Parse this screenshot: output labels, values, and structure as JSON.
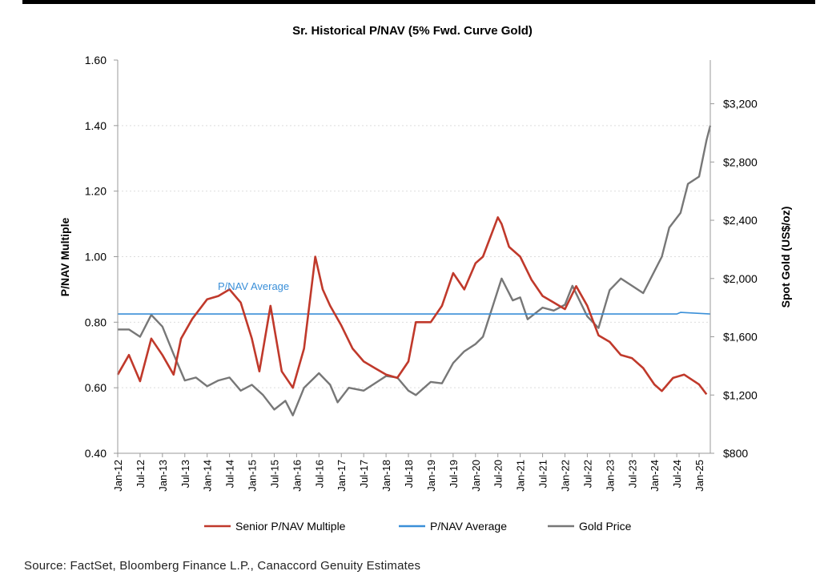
{
  "source_text": "Source:  FactSet, Bloomberg Finance L.P., Canaccord Genuity Estimates",
  "chart_data": {
    "type": "line",
    "title": "Sr. Historical P/NAV (5% Fwd. Curve Gold)",
    "ylabel": "P/NAV Multiple",
    "y2label": "Spot Gold (US$/oz)",
    "ylim": [
      0.4,
      1.6
    ],
    "y2lim": [
      800,
      3500
    ],
    "yticks": [
      "0.40",
      "0.60",
      "0.80",
      "1.00",
      "1.20",
      "1.40",
      "1.60"
    ],
    "y2ticks": [
      "$800",
      "$1,200",
      "$1,600",
      "$2,000",
      "$2,400",
      "$2,800",
      "$3,200"
    ],
    "x_tick_labels": [
      "Jan-12",
      "Jul-12",
      "Jan-13",
      "Jul-13",
      "Jan-14",
      "Jul-14",
      "Jan-15",
      "Jul-15",
      "Jan-16",
      "Jul-16",
      "Jan-17",
      "Jul-17",
      "Jan-18",
      "Jul-18",
      "Jan-19",
      "Jul-19",
      "Jan-20",
      "Jul-20",
      "Jan-21",
      "Jul-21",
      "Jan-22",
      "Jul-22",
      "Jan-23",
      "Jul-23",
      "Jan-24",
      "Jul-24",
      "Jan-25"
    ],
    "xlim": [
      "Jan-12",
      "Apr-25"
    ],
    "grid": "horizontal dashed",
    "legend_position": "bottom",
    "annotation": "P/NAV Average",
    "series": [
      {
        "name": "Senior P/NAV Multiple",
        "axis": "left",
        "color": "#c0392b",
        "x": [
          "Jan-12",
          "Apr-12",
          "Jul-12",
          "Oct-12",
          "Jan-13",
          "Apr-13",
          "Jun-13",
          "Sep-13",
          "Jan-14",
          "Apr-14",
          "Jul-14",
          "Oct-14",
          "Jan-15",
          "Mar-15",
          "Jun-15",
          "Sep-15",
          "Dec-15",
          "Mar-16",
          "Jun-16",
          "Aug-16",
          "Oct-16",
          "Jan-17",
          "Apr-17",
          "Jul-17",
          "Oct-17",
          "Jan-18",
          "Apr-18",
          "Jul-18",
          "Sep-18",
          "Jan-19",
          "Apr-19",
          "Jul-19",
          "Oct-19",
          "Jan-20",
          "Mar-20",
          "Jul-20",
          "Aug-20",
          "Oct-20",
          "Jan-21",
          "Apr-21",
          "Jul-21",
          "Oct-21",
          "Jan-22",
          "Apr-22",
          "Jul-22",
          "Oct-22",
          "Jan-23",
          "Apr-23",
          "Jul-23",
          "Oct-23",
          "Jan-24",
          "Mar-24",
          "Jun-24",
          "Sep-24",
          "Jan-25",
          "Mar-25"
        ],
        "values": [
          0.64,
          0.7,
          0.62,
          0.75,
          0.7,
          0.64,
          0.75,
          0.81,
          0.87,
          0.88,
          0.9,
          0.86,
          0.75,
          0.65,
          0.85,
          0.65,
          0.6,
          0.72,
          1.0,
          0.9,
          0.85,
          0.79,
          0.72,
          0.68,
          0.66,
          0.64,
          0.63,
          0.68,
          0.8,
          0.8,
          0.85,
          0.95,
          0.9,
          0.98,
          1.0,
          1.12,
          1.1,
          1.03,
          1.0,
          0.93,
          0.88,
          0.86,
          0.84,
          0.91,
          0.85,
          0.76,
          0.74,
          0.7,
          0.69,
          0.66,
          0.61,
          0.59,
          0.63,
          0.64,
          0.61,
          0.58
        ]
      },
      {
        "name": "P/NAV Average",
        "axis": "left",
        "color": "#3a8fd8",
        "x": [
          "Jan-12",
          "Jul-24",
          "Aug-24",
          "Apr-25"
        ],
        "values": [
          0.825,
          0.825,
          0.83,
          0.825
        ]
      },
      {
        "name": "Gold Price",
        "axis": "right",
        "color": "#777777",
        "x": [
          "Jan-12",
          "Apr-12",
          "Jul-12",
          "Oct-12",
          "Jan-13",
          "Apr-13",
          "Jul-13",
          "Oct-13",
          "Jan-14",
          "Apr-14",
          "Jul-14",
          "Oct-14",
          "Jan-15",
          "Apr-15",
          "Jul-15",
          "Oct-15",
          "Dec-15",
          "Mar-16",
          "Jul-16",
          "Oct-16",
          "Dec-16",
          "Mar-17",
          "Jul-17",
          "Oct-17",
          "Jan-18",
          "Apr-18",
          "Jul-18",
          "Sep-18",
          "Jan-19",
          "Apr-19",
          "Jul-19",
          "Oct-19",
          "Jan-20",
          "Mar-20",
          "Aug-20",
          "Nov-20",
          "Jan-21",
          "Mar-21",
          "Jul-21",
          "Oct-21",
          "Jan-22",
          "Mar-22",
          "Jul-22",
          "Oct-22",
          "Jan-23",
          "Apr-23",
          "Jul-23",
          "Oct-23",
          "Jan-24",
          "Mar-24",
          "May-24",
          "Aug-24",
          "Oct-24",
          "Jan-25",
          "Mar-25",
          "Apr-25"
        ],
        "values": [
          1650,
          1650,
          1600,
          1750,
          1670,
          1480,
          1300,
          1320,
          1260,
          1300,
          1320,
          1230,
          1270,
          1200,
          1100,
          1160,
          1060,
          1250,
          1350,
          1270,
          1150,
          1250,
          1230,
          1280,
          1330,
          1320,
          1230,
          1200,
          1290,
          1280,
          1420,
          1500,
          1550,
          1600,
          2000,
          1850,
          1870,
          1720,
          1800,
          1780,
          1820,
          1950,
          1740,
          1660,
          1920,
          2000,
          1950,
          1900,
          2050,
          2150,
          2350,
          2450,
          2650,
          2700,
          2950,
          3050
        ]
      }
    ]
  }
}
